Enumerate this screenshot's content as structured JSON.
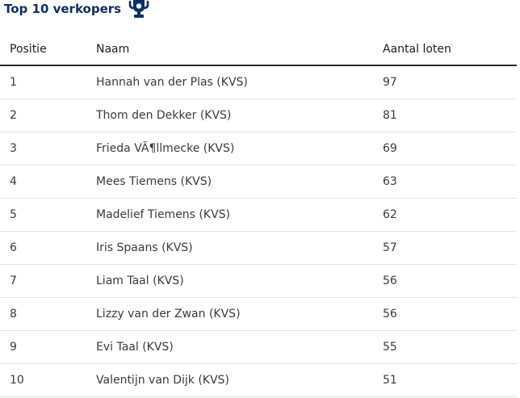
{
  "header": {
    "title": "Top 10 verkopers",
    "icon": "trophy-icon",
    "title_color": "#0b2f6b"
  },
  "table": {
    "columns": [
      "Positie",
      "Naam",
      "Aantal loten"
    ],
    "rows": [
      {
        "position": "1",
        "name": "Hannah van der Plas (KVS)",
        "count": "97"
      },
      {
        "position": "2",
        "name": "Thom den Dekker (KVS)",
        "count": "81"
      },
      {
        "position": "3",
        "name": "Frieda VÃ¶llmecke (KVS)",
        "count": "69"
      },
      {
        "position": "4",
        "name": "Mees Tiemens (KVS)",
        "count": "63"
      },
      {
        "position": "5",
        "name": "Madelief Tiemens (KVS)",
        "count": "62"
      },
      {
        "position": "6",
        "name": "Iris Spaans (KVS)",
        "count": "57"
      },
      {
        "position": "7",
        "name": "Liam Taal (KVS)",
        "count": "56"
      },
      {
        "position": "8",
        "name": "Lizzy van der Zwan (KVS)",
        "count": "56"
      },
      {
        "position": "9",
        "name": "Evi Taal (KVS)",
        "count": "55"
      },
      {
        "position": "10",
        "name": "Valentijn van Dijk (KVS)",
        "count": "51"
      }
    ]
  }
}
